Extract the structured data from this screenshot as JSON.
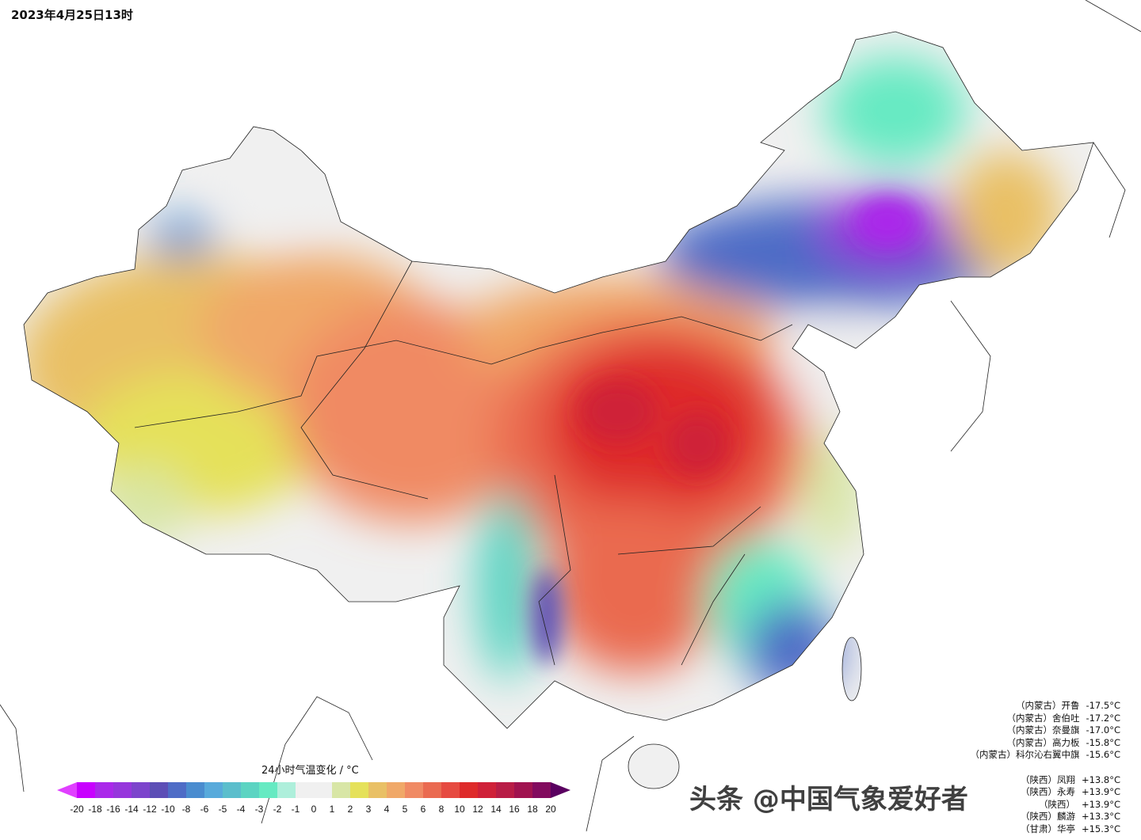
{
  "title": "2023年4月25日13时",
  "colorbar": {
    "title": "24小时气温变化 / °C",
    "labels": [
      "-20",
      "-18",
      "-16",
      "-14",
      "-12",
      "-10",
      "-8",
      "-6",
      "-5",
      "-4",
      "-3",
      "-2",
      "-1",
      "0",
      "1",
      "2",
      "3",
      "4",
      "5",
      "6",
      "8",
      "10",
      "12",
      "14",
      "16",
      "18",
      "20"
    ],
    "colors": [
      "#c800ff",
      "#aa28ea",
      "#9636dc",
      "#7c44cc",
      "#5c4eb6",
      "#4e6cc6",
      "#4a8ccf",
      "#58aadb",
      "#5bbecc",
      "#5cd4c2",
      "#66eac2",
      "#aeefdb",
      "#f0f0f0",
      "#f0f0f0",
      "#d8e6a6",
      "#e5e15a",
      "#e9c065",
      "#f0a868",
      "#f08a64",
      "#ea6a50",
      "#e64a40",
      "#de2a2a",
      "#cf2038",
      "#b81c46",
      "#a0124f",
      "#820a5e"
    ]
  },
  "stats": {
    "coldest": [
      {
        "region": "（内蒙古）",
        "station": "开鲁",
        "value": "-17.5°C"
      },
      {
        "region": "（内蒙古）",
        "station": "舍伯吐",
        "value": "-17.2°C"
      },
      {
        "region": "（内蒙古）",
        "station": "奈曼旗",
        "value": "-17.0°C"
      },
      {
        "region": "（内蒙古）",
        "station": "高力板",
        "value": "-15.8°C"
      },
      {
        "region": "（内蒙古）",
        "station": "科尔沁右翼中旗",
        "value": "-15.6°C"
      }
    ],
    "warmest": [
      {
        "region": "（陕西）",
        "station": "凤翔",
        "value": "+13.8°C"
      },
      {
        "region": "（陕西）",
        "station": "永寿",
        "value": "+13.9°C"
      },
      {
        "region": "（陕西）",
        "station": "",
        "value": "+13.9°C"
      },
      {
        "region": "（陕西）",
        "station": "麟游",
        "value": "+13.3°C"
      },
      {
        "region": "（甘肃）",
        "station": "华亭",
        "value": "+15.3°C"
      }
    ]
  },
  "watermark": "头条 @中国气象爱好者"
}
